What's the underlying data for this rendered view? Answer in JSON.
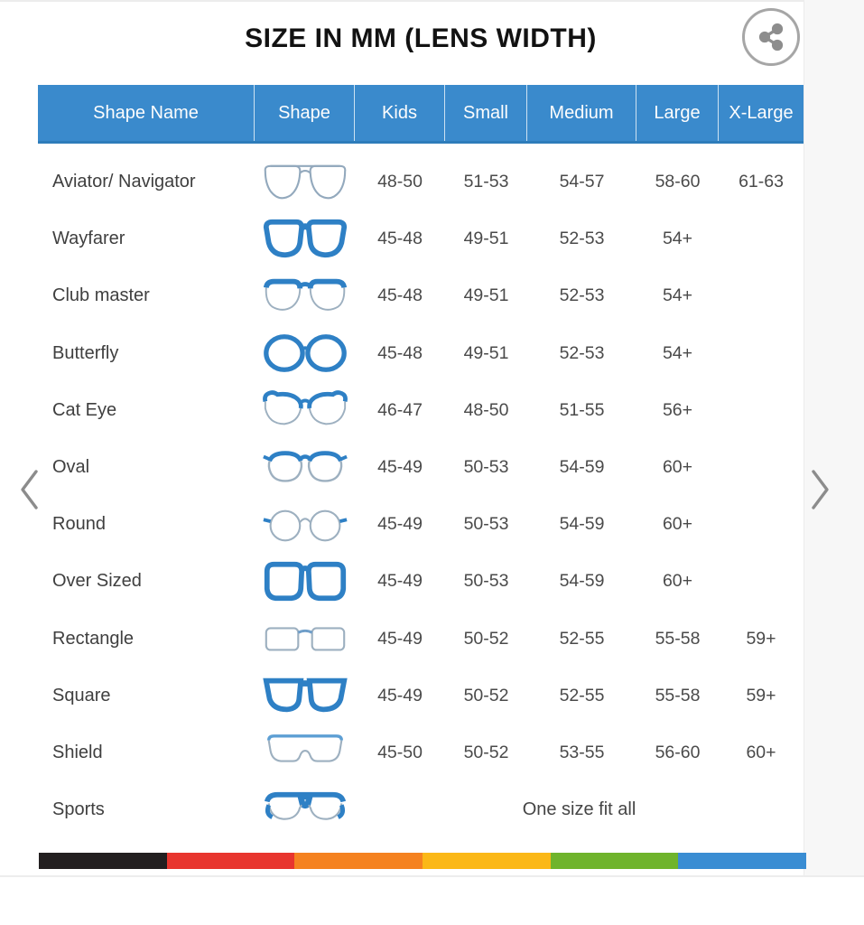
{
  "title": "SIZE IN MM (LENS WIDTH)",
  "header": {
    "share_icon": "share-icon"
  },
  "carousel": {
    "prev_icon": "chevron-left-icon",
    "next_icon": "chevron-right-icon"
  },
  "chart_data": {
    "type": "table",
    "title": "SIZE IN MM (LENS WIDTH)",
    "columns": [
      "Shape Name",
      "Shape",
      "Kids",
      "Small",
      "Medium",
      "Large",
      "X-Large"
    ],
    "rows": [
      {
        "name": "Aviator/ Navigator",
        "icon": "aviator",
        "sizes": [
          "48-50",
          "51-53",
          "54-57",
          "58-60",
          "61-63"
        ]
      },
      {
        "name": "Wayfarer",
        "icon": "wayfarer",
        "sizes": [
          "45-48",
          "49-51",
          "52-53",
          "54+",
          ""
        ]
      },
      {
        "name": "Club master",
        "icon": "clubmaster",
        "sizes": [
          "45-48",
          "49-51",
          "52-53",
          "54+",
          ""
        ]
      },
      {
        "name": "Butterfly",
        "icon": "butterfly",
        "sizes": [
          "45-48",
          "49-51",
          "52-53",
          "54+",
          ""
        ]
      },
      {
        "name": "Cat Eye",
        "icon": "cateye",
        "sizes": [
          "46-47",
          "48-50",
          "51-55",
          "56+",
          ""
        ]
      },
      {
        "name": "Oval",
        "icon": "oval",
        "sizes": [
          "45-49",
          "50-53",
          "54-59",
          "60+",
          ""
        ]
      },
      {
        "name": "Round",
        "icon": "round",
        "sizes": [
          "45-49",
          "50-53",
          "54-59",
          "60+",
          ""
        ]
      },
      {
        "name": "Over Sized",
        "icon": "oversized",
        "sizes": [
          "45-49",
          "50-53",
          "54-59",
          "60+",
          ""
        ]
      },
      {
        "name": "Rectangle",
        "icon": "rectangle",
        "sizes": [
          "45-49",
          "50-52",
          "52-55",
          "55-58",
          "59+"
        ]
      },
      {
        "name": "Square",
        "icon": "square",
        "sizes": [
          "45-49",
          "50-52",
          "52-55",
          "55-58",
          "59+"
        ]
      },
      {
        "name": "Shield",
        "icon": "shield",
        "sizes": [
          "45-50",
          "50-52",
          "53-55",
          "56-60",
          "60+"
        ]
      },
      {
        "name": "Sports",
        "icon": "sports",
        "span_text": "One size fit all"
      }
    ]
  },
  "colors": {
    "header_bg": "#3a8acc",
    "frame_blue": "#2e80c5",
    "frame_gray": "#9db0c0",
    "stripe": [
      "#231f20",
      "#e8352e",
      "#f58220",
      "#fbb817",
      "#6fb42c",
      "#3a8dd3"
    ]
  }
}
